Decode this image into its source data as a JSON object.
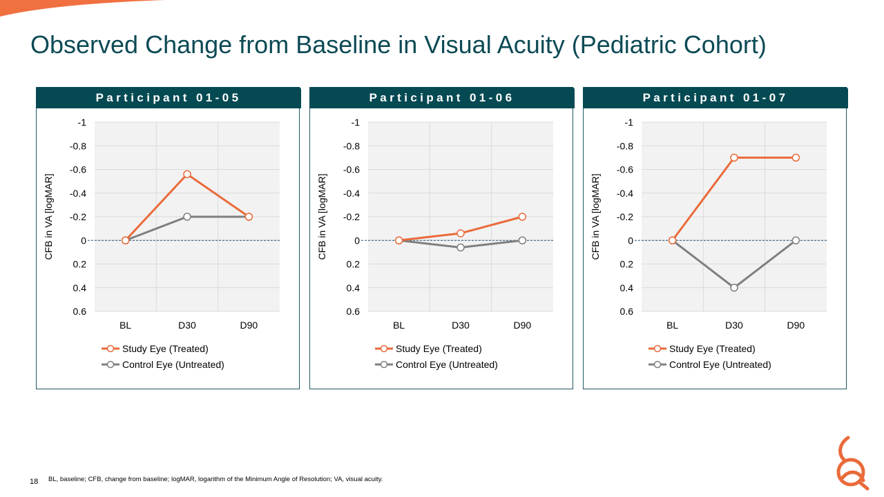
{
  "page": {
    "title": "Observed Change from Baseline in Visual Acuity (Pediatric Cohort)",
    "page_number": "18",
    "footnote": "BL, baseline; CFB, change from baseline; logMAR, logarithm of the Minimum Angle of Resolution; VA, visual acuity."
  },
  "colors": {
    "title": "#0c4a55",
    "header_bg": "#054a53",
    "study_eye": "#ea6a3a",
    "control_eye": "#7f7f7f",
    "plot_bg": "#f2f2f2",
    "baseline_line": "#1f4e79"
  },
  "icons": [
    "corner-swoosh",
    "brand-logo-icon"
  ],
  "chart_data": [
    {
      "type": "line",
      "title": "Participant 01-05",
      "xlabel": "",
      "ylabel": "CFB in VA [logMAR]",
      "categories": [
        "BL",
        "D30",
        "D90"
      ],
      "y_ticks": [
        "-1",
        "-0.8",
        "-0.6",
        "-0.4",
        "-0.2",
        "0",
        "0.2",
        "0.4",
        "0.6"
      ],
      "ylim": [
        -1,
        0.6
      ],
      "y_reversed": true,
      "grid": true,
      "legend": "bottom",
      "series": [
        {
          "name": "Study Eye (Treated)",
          "values": [
            0,
            -0.56,
            -0.2
          ]
        },
        {
          "name": "Control Eye (Untreated)",
          "values": [
            0,
            -0.2,
            -0.2
          ]
        }
      ]
    },
    {
      "type": "line",
      "title": "Participant 01-06",
      "xlabel": "",
      "ylabel": "CFB in VA [logMAR]",
      "categories": [
        "BL",
        "D30",
        "D90"
      ],
      "y_ticks": [
        "-1",
        "-0.8",
        "-0.6",
        "-0.4",
        "-0.2",
        "0",
        "0.2",
        "0.4",
        "0.6"
      ],
      "ylim": [
        -1,
        0.6
      ],
      "y_reversed": true,
      "grid": true,
      "legend": "bottom",
      "series": [
        {
          "name": "Study Eye (Treated)",
          "values": [
            0,
            -0.06,
            -0.2
          ]
        },
        {
          "name": "Control Eye (Untreated)",
          "values": [
            0,
            0.06,
            0
          ]
        }
      ]
    },
    {
      "type": "line",
      "title": "Participant 01-07",
      "xlabel": "",
      "ylabel": "CFB in VA [logMAR]",
      "categories": [
        "BL",
        "D30",
        "D90"
      ],
      "y_ticks": [
        "-1",
        "-0.8",
        "-0.6",
        "-0.4",
        "-0.2",
        "0",
        "0.2",
        "0.4",
        "0.6"
      ],
      "ylim": [
        -1,
        0.6
      ],
      "y_reversed": true,
      "grid": true,
      "legend": "bottom",
      "series": [
        {
          "name": "Study Eye (Treated)",
          "values": [
            0,
            -0.7,
            -0.7
          ]
        },
        {
          "name": "Control Eye (Untreated)",
          "values": [
            0,
            0.4,
            0
          ]
        }
      ]
    }
  ]
}
